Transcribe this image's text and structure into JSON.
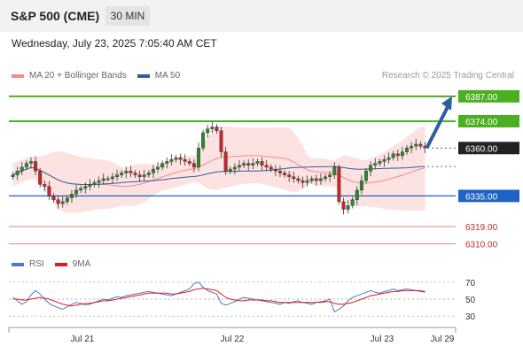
{
  "header": {
    "title": "S&P 500 (CME)",
    "timeframe": "30 MIN"
  },
  "datetime": "Wednesday, July 23, 2025 7:05:40 AM CET",
  "legend": {
    "ma20_label": "MA 20 + Bollinger Bands",
    "ma50_label": "MA 50",
    "ma20_color": "#f28b8b",
    "ma50_color": "#2c5f9e"
  },
  "source": "Research © 2025 Trading Central",
  "rsi_legend": {
    "rsi_label": "RSI",
    "ma_label": "9MA",
    "rsi_color": "#4a7bd0",
    "ma_color": "#e01b1b"
  },
  "colors": {
    "up": "#2d8a2d",
    "down": "#c62828",
    "band": "#fde2e2",
    "resistance": "#4caf22",
    "support_main": "#1f63c4",
    "support_minor": "#f08080",
    "current_price_bg": "#222222",
    "arrow": "#2c5f9e"
  },
  "chart_data": [
    {
      "type": "candlestick",
      "ylim": [
        6307,
        6392
      ],
      "x_ticks": [
        "Jul 21",
        "Jul 22",
        "Jul 23",
        "Jul 29"
      ],
      "closes": [
        6346,
        6348,
        6350,
        6352,
        6353,
        6348,
        6341,
        6340,
        6335,
        6333,
        6331,
        6332,
        6334,
        6336,
        6338,
        6339,
        6340,
        6341,
        6342,
        6343,
        6344,
        6344,
        6345,
        6346,
        6347,
        6348,
        6347,
        6346,
        6345,
        6346,
        6347,
        6349,
        6350,
        6352,
        6353,
        6354,
        6355,
        6354,
        6353,
        6352,
        6350,
        6360,
        6368,
        6370,
        6371,
        6369,
        6358,
        6348,
        6349,
        6350,
        6351,
        6352,
        6351,
        6352,
        6353,
        6351,
        6350,
        6349,
        6348,
        6347,
        6346,
        6345,
        6344,
        6343,
        6342,
        6343,
        6344,
        6343,
        6344,
        6345,
        6346,
        6350,
        6332,
        6328,
        6330,
        6333,
        6338,
        6343,
        6348,
        6351,
        6352,
        6353,
        6354,
        6355,
        6357,
        6356,
        6358,
        6360,
        6361,
        6362,
        6361,
        6360
      ],
      "levels": [
        {
          "label": "6387.00",
          "value": 6387,
          "kind": "resistance"
        },
        {
          "label": "6374.00",
          "value": 6374,
          "kind": "resistance"
        },
        {
          "label": "6360.00",
          "value": 6360,
          "kind": "current"
        },
        {
          "label": "6335.00",
          "value": 6335,
          "kind": "support_main"
        },
        {
          "label": "6319.00",
          "value": 6319,
          "kind": "support_minor"
        },
        {
          "label": "6310.00",
          "value": 6310,
          "kind": "support_minor"
        }
      ],
      "forecast_target": 6387
    },
    {
      "type": "line",
      "title": "RSI",
      "ylim": [
        25,
        75
      ],
      "y_ticks": [
        70,
        50,
        30
      ],
      "rsi": [
        52,
        48,
        44,
        47,
        55,
        60,
        56,
        50,
        45,
        42,
        40,
        38,
        41,
        44,
        46,
        45,
        43,
        44,
        46,
        48,
        50,
        49,
        51,
        53,
        52,
        54,
        55,
        56,
        57,
        58,
        59,
        58,
        57,
        56,
        55,
        54,
        56,
        58,
        60,
        62,
        68,
        70,
        64,
        60,
        58,
        56,
        45,
        43,
        45,
        47,
        50,
        52,
        51,
        50,
        49,
        48,
        47,
        46,
        45,
        44,
        46,
        45,
        47,
        48,
        46,
        45,
        44,
        46,
        47,
        48,
        50,
        35,
        38,
        42,
        48,
        52,
        54,
        56,
        58,
        60,
        58,
        57,
        59,
        60,
        62,
        60,
        61,
        62,
        61,
        60,
        59,
        58
      ],
      "ma9": [
        50,
        50,
        49,
        49,
        50,
        51,
        52,
        51,
        50,
        48,
        46,
        44,
        43,
        42,
        43,
        44,
        45,
        45,
        46,
        47,
        48,
        48,
        49,
        50,
        51,
        52,
        53,
        54,
        55,
        56,
        57,
        57,
        57,
        57,
        57,
        56,
        56,
        57,
        58,
        59,
        61,
        62,
        63,
        62,
        61,
        60,
        56,
        52,
        50,
        49,
        48,
        48,
        49,
        49,
        49,
        49,
        48,
        48,
        47,
        46,
        46,
        46,
        46,
        46,
        46,
        46,
        46,
        46,
        46,
        47,
        47,
        45,
        44,
        44,
        45,
        46,
        48,
        50,
        52,
        54,
        55,
        56,
        57,
        58,
        59,
        59,
        60,
        60,
        60,
        60,
        60,
        59
      ]
    }
  ]
}
